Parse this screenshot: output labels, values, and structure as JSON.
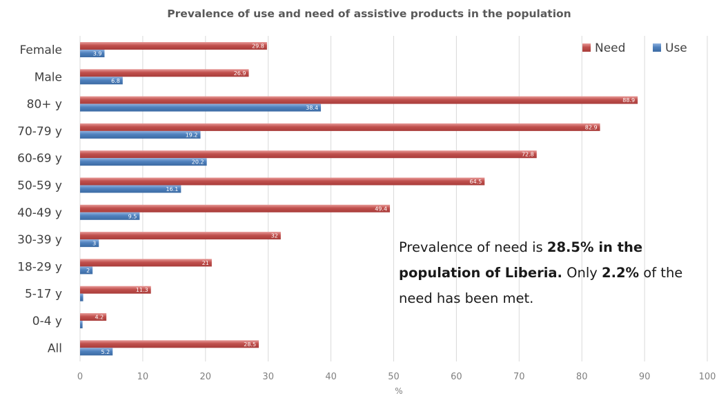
{
  "chart_data": {
    "type": "bar",
    "orientation": "horizontal",
    "title": "Prevalence of use and need of assistive products in the population",
    "xlabel": "%",
    "xlim": [
      0,
      100
    ],
    "xticks": [
      "0",
      "10",
      "20",
      "30",
      "40",
      "50",
      "60",
      "70",
      "80",
      "90",
      "100"
    ],
    "grid": true,
    "legend_position": "top-right",
    "categories": [
      "Female",
      "Male",
      "80+ y",
      "70-79 y",
      "60-69 y",
      "50-59 y",
      "40-49 y",
      "30-39 y",
      "18-29 y",
      "5-17 y",
      "0-4 y",
      "All"
    ],
    "series": [
      {
        "name": "Need",
        "color": "#c0504d",
        "values": [
          29.8,
          26.9,
          88.9,
          82.9,
          72.8,
          64.5,
          49.4,
          32,
          21,
          11.3,
          4.2,
          28.5
        ],
        "labels": [
          "29.8",
          "26.9",
          "88.9",
          "82.9",
          "72.8",
          "64.5",
          "49.4",
          "32",
          "21",
          "11.3",
          "4.2",
          "28.5"
        ]
      },
      {
        "name": "Use",
        "color": "#4f81bd",
        "values": [
          3.9,
          6.8,
          38.4,
          19.2,
          20.2,
          16.1,
          9.5,
          3,
          2,
          0.5,
          0.4,
          5.2
        ],
        "labels": [
          "3.9",
          "6.8",
          "38.4",
          "19.2",
          "20.2",
          "16.1",
          "9.5",
          "3",
          "2",
          "",
          "",
          "5.2"
        ]
      }
    ]
  },
  "annotation": {
    "part1": "Prevalence of need is ",
    "part2": "28.5% in the population of Liberia.",
    "part3": " Only ",
    "part4": "2.2%",
    "part5": " of the need has been met."
  }
}
